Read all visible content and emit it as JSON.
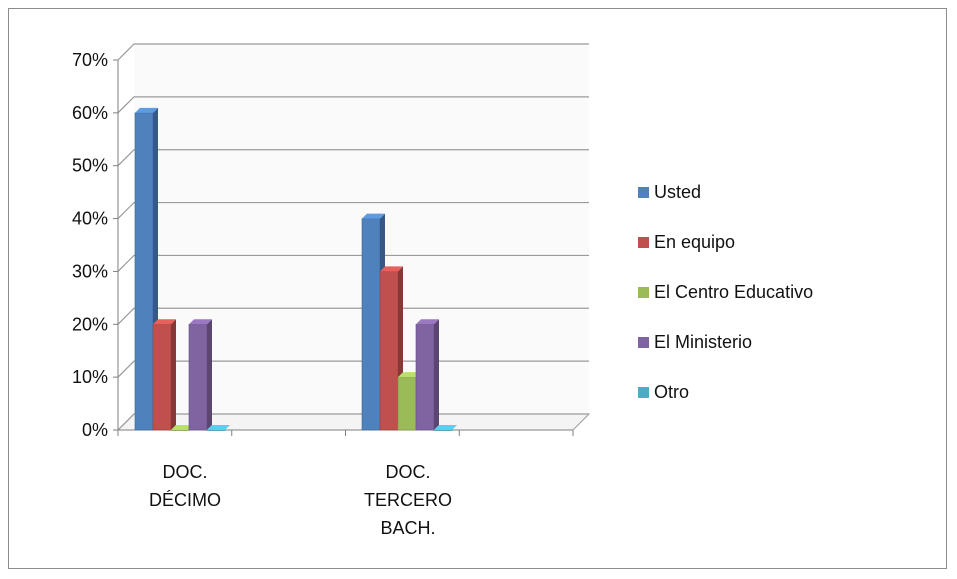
{
  "chart_data": {
    "type": "bar",
    "categories": [
      "DOC. DÉCIMO",
      "DOC. TERCERO BACH."
    ],
    "category_lines": [
      [
        "DOC.",
        "DÉCIMO"
      ],
      [
        "DOC.",
        "TERCERO",
        "BACH."
      ]
    ],
    "series": [
      {
        "name": "Usted",
        "values": [
          60,
          40
        ],
        "color": "#4f81bd"
      },
      {
        "name": "En equipo",
        "values": [
          20,
          30
        ],
        "color": "#c0504d"
      },
      {
        "name": "El Centro Educativo",
        "values": [
          0,
          10
        ],
        "color": "#9bbb59"
      },
      {
        "name": "El Ministerio",
        "values": [
          20,
          20
        ],
        "color": "#8064a2"
      },
      {
        "name": "Otro",
        "values": [
          0,
          0
        ],
        "color": "#4bacc6"
      }
    ],
    "yticks": [
      "0%",
      "10%",
      "20%",
      "30%",
      "40%",
      "50%",
      "60%",
      "70%"
    ],
    "ylim": [
      0,
      70
    ],
    "grid": true,
    "legend_position": "right"
  }
}
